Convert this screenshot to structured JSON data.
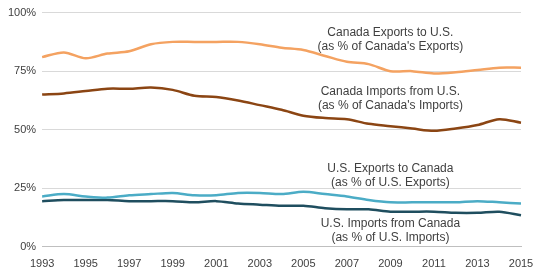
{
  "chart_data": {
    "type": "line",
    "categories": [
      "1993",
      null,
      "1995",
      null,
      "1997",
      null,
      "1999",
      null,
      "2001",
      null,
      "2003",
      null,
      "2005",
      null,
      "2007",
      null,
      "2009",
      null,
      "2011",
      null,
      "2013",
      null,
      "2015"
    ],
    "series": [
      {
        "name": "Canada Exports to U.S. (as % of Canada's Exports)",
        "color": "#f4a261",
        "values": [
          81,
          83,
          80.5,
          82.5,
          83.5,
          86.5,
          87.5,
          87.5,
          87.5,
          87.5,
          86.5,
          85,
          84,
          81.5,
          79,
          78,
          75,
          75,
          74,
          74.5,
          75.5,
          76.5,
          76.5
        ]
      },
      {
        "name": "Canada Imports from U.S. (as % of Canada's Imports)",
        "color": "#8b4513",
        "values": [
          65,
          65.5,
          66.5,
          67.5,
          67.5,
          68,
          67,
          64.5,
          64,
          62.5,
          60.5,
          58.5,
          56,
          55,
          54.5,
          52.5,
          51.5,
          50.5,
          49.5,
          50.5,
          52,
          54.5,
          53
        ]
      },
      {
        "name": "U.S. Exports to Canada (as % of U.S. Exports)",
        "color": "#4bacc6",
        "values": [
          21.5,
          22.5,
          21.5,
          21,
          22,
          22.5,
          23,
          22,
          22,
          23,
          23,
          22.5,
          23.5,
          22.5,
          21.5,
          20,
          19,
          19,
          19,
          19,
          19.5,
          19,
          18.5
        ]
      },
      {
        "name": "U.S. Imports from Canada (as % of U.S. Imports)",
        "color": "#1f4e5f",
        "values": [
          19.5,
          20,
          20,
          20,
          19.5,
          19.5,
          19.5,
          19,
          19.5,
          18.5,
          18,
          17.5,
          17.5,
          16.5,
          16,
          16,
          15,
          15,
          15,
          14.5,
          14.5,
          15,
          13.5
        ]
      }
    ],
    "ylim": [
      0,
      100
    ],
    "yticks": [
      {
        "value": 0,
        "label": "0%"
      },
      {
        "value": 25,
        "label": "25%"
      },
      {
        "value": 50,
        "label": "50%"
      },
      {
        "value": 75,
        "label": "75%"
      },
      {
        "value": 100,
        "label": "100%"
      }
    ],
    "grid": true
  }
}
